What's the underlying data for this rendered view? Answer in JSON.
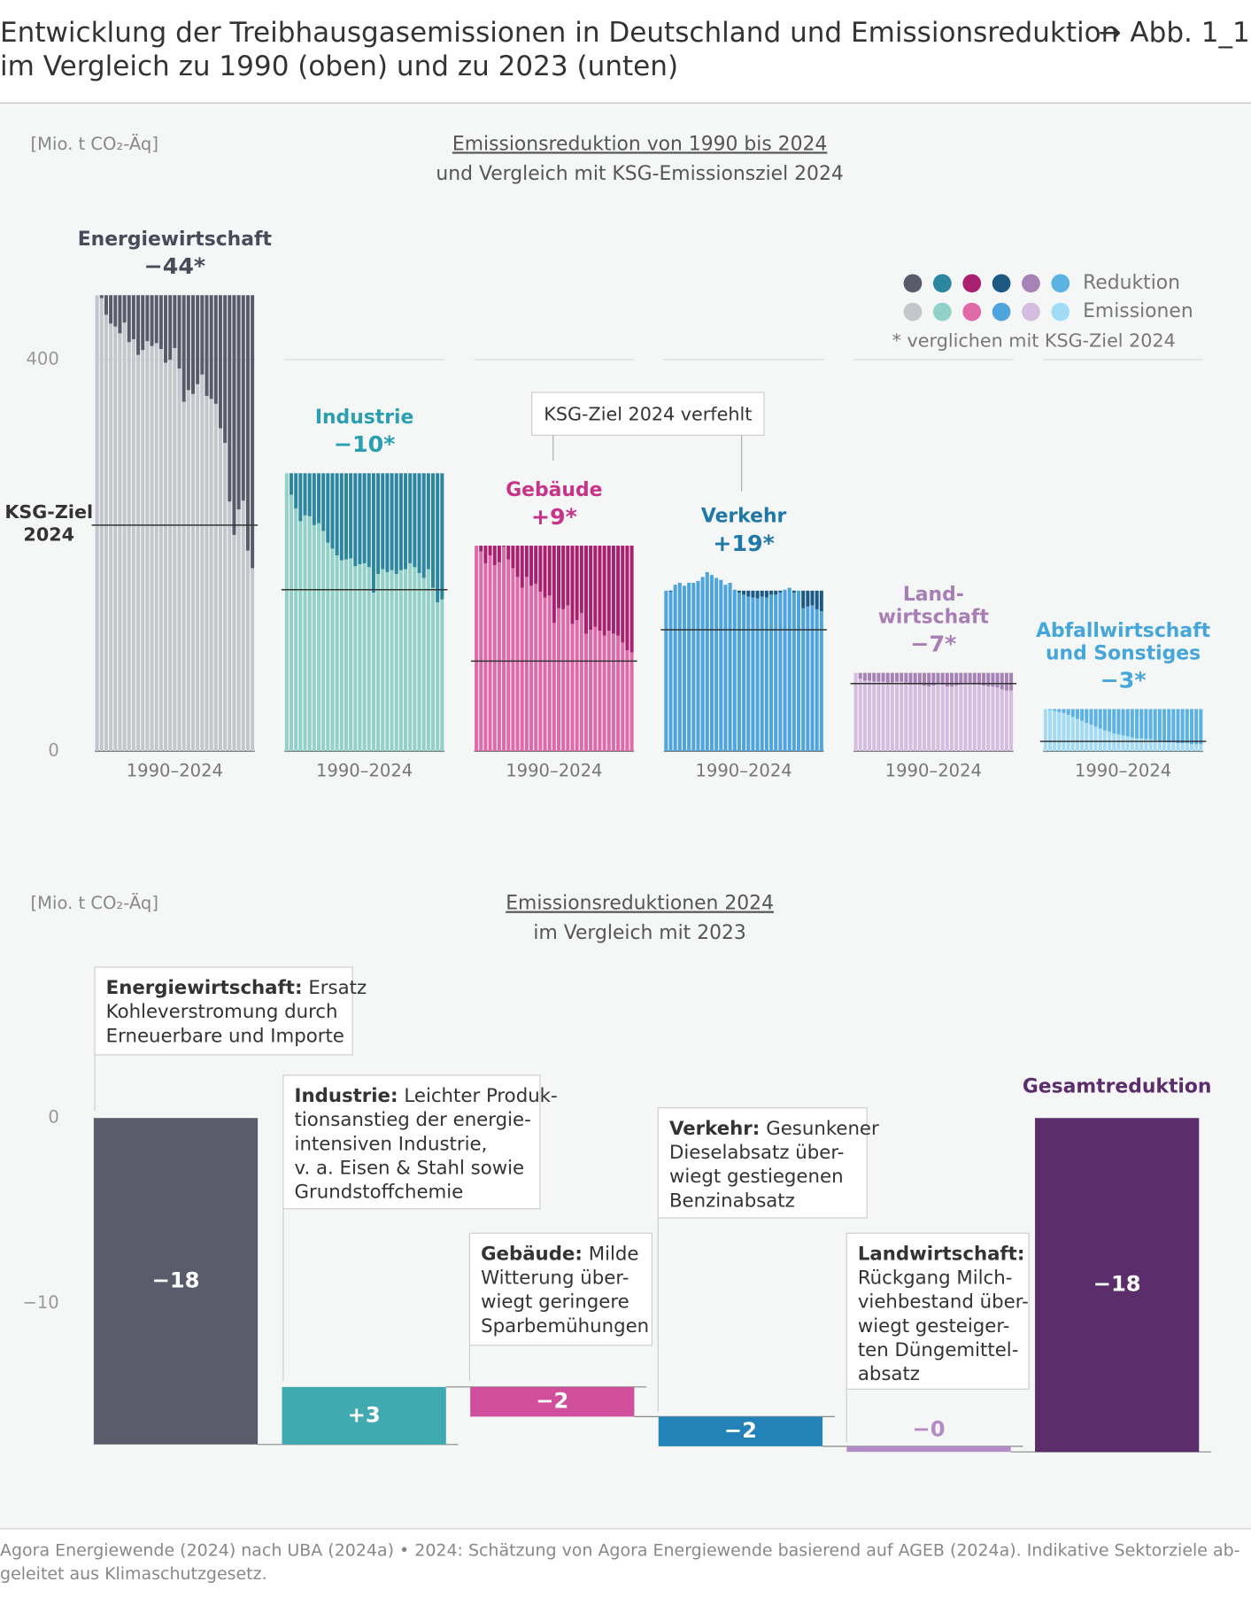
{
  "header": {
    "title_lines": [
      "Entwicklung der Treibhausgasemissionen in Deutschland und Emissionsreduktion",
      "im Vergleich zu 1990 (oben) und zu 2023 (unten)"
    ],
    "ref": "→ Abb. 1_1"
  },
  "footer": {
    "lines": [
      "Agora Energiewende (2024) nach UBA (2024a) • 2024: Schätzung von Agora Energiewende basierend auf AGEB (2024a). Indikative Sektorziele ab-",
      "geleitet aus Klimaschutzgesetz."
    ]
  },
  "chart_data": [
    {
      "type": "bar",
      "unit": "[Mio. t CO₂-Äq]",
      "title": "Emissionsreduktion von 1990 bis 2024",
      "subtitle": "und Vergleich mit KSG-Emissionsziel 2024",
      "x_label": "1990–2024",
      "ylim": [
        0,
        480
      ],
      "yticks": [
        0,
        400
      ],
      "grid": true,
      "target_label": [
        "KSG-Ziel",
        "2024"
      ],
      "callout": "KSG-Ziel 2024 verfehlt",
      "legend": {
        "labels": [
          "Reduktion",
          "Emissionen"
        ],
        "note": "* verglichen mit KSG-Ziel 2024"
      },
      "series": [
        {
          "name_lines": [
            "Energiewirtschaft"
          ],
          "label_color": "#4a4b5a",
          "color_reduction": "#595b6a",
          "color": "#c4c6cb",
          "target": 231,
          "diff_label": "−44*",
          "values": [
            466,
            463,
            446,
            437,
            434,
            427,
            438,
            418,
            421,
            405,
            410,
            419,
            414,
            417,
            411,
            397,
            400,
            412,
            391,
            357,
            369,
            365,
            375,
            385,
            363,
            360,
            355,
            330,
            315,
            255,
            221,
            247,
            256,
            205,
            187
          ]
        },
        {
          "name_lines": [
            "Industrie"
          ],
          "label_color": "#2b9fb2",
          "color_reduction": "#2a879f",
          "color": "#92d1c8",
          "target": 165,
          "diff_label": "−10*",
          "values": [
            284,
            262,
            248,
            235,
            241,
            240,
            231,
            233,
            225,
            213,
            207,
            200,
            195,
            196,
            197,
            189,
            191,
            192,
            188,
            162,
            181,
            186,
            183,
            185,
            181,
            185,
            186,
            192,
            188,
            182,
            177,
            186,
            167,
            152,
            155
          ]
        },
        {
          "name_lines": [
            "Gebäude"
          ],
          "label_color": "#c8338a",
          "color_reduction": "#a8206f",
          "color": "#e06aa9",
          "target": 92,
          "diff_label": "+9*",
          "values": [
            210,
            204,
            192,
            200,
            190,
            193,
            209,
            196,
            187,
            178,
            167,
            178,
            169,
            171,
            163,
            157,
            159,
            131,
            146,
            145,
            149,
            130,
            134,
            141,
            120,
            124,
            127,
            123,
            118,
            123,
            120,
            118,
            111,
            103,
            101
          ]
        },
        {
          "name_lines": [
            "Verkehr"
          ],
          "label_color": "#1f78a8",
          "color_reduction": "#1c5a85",
          "color": "#4ea5dd",
          "target": 124,
          "diff_label": "+19*",
          "values": [
            164,
            163,
            170,
            172,
            169,
            172,
            172,
            174,
            178,
            183,
            180,
            177,
            175,
            170,
            172,
            165,
            162,
            160,
            158,
            157,
            156,
            158,
            157,
            160,
            160,
            162,
            165,
            167,
            162,
            164,
            146,
            148,
            149,
            145,
            143
          ]
        },
        {
          "name_lines": [
            "Land-",
            "wirtschaft"
          ],
          "label_color": "#a87fb5",
          "color_reduction": "#a782b6",
          "color": "#d4bde0",
          "target": 69,
          "diff_label": "−7*",
          "values": [
            80,
            74,
            72,
            72,
            71,
            71,
            71,
            70,
            70,
            71,
            71,
            70,
            68,
            68,
            68,
            67,
            66,
            67,
            69,
            68,
            66,
            66,
            67,
            68,
            69,
            69,
            68,
            68,
            67,
            66,
            66,
            65,
            63,
            62,
            62
          ]
        },
        {
          "name_lines": [
            "Abfallwirtschaft",
            "und Sonstiges"
          ],
          "label_color": "#45a6dc",
          "color_reduction": "#5cb2e3",
          "color": "#a2dbf5",
          "target": 10,
          "diff_label": "−3*",
          "values": [
            43,
            42,
            41,
            40,
            39,
            37,
            35,
            33,
            31,
            29,
            27,
            25,
            23,
            21,
            20,
            18,
            17,
            16,
            15,
            14,
            13,
            13,
            12,
            12,
            11,
            10,
            10,
            9,
            9,
            8,
            8,
            8,
            7,
            7,
            7
          ]
        }
      ]
    },
    {
      "type": "waterfall",
      "unit": "[Mio. t CO₂-Äq]",
      "title": "Emissionsreduktionen 2024",
      "subtitle": "im Vergleich mit 2023",
      "ylim": [
        -18.5,
        5
      ],
      "yticks": [
        0,
        {
          "value": -10,
          "label": "−10"
        }
      ],
      "grid": false,
      "items": [
        {
          "head": "Energiewirtschaft:",
          "rest": "Ersatz",
          "lines": [
            "Kohleverstromung durch",
            "Erneuerbare und Importe"
          ],
          "value": -17.6,
          "value_label": "−18",
          "color": "#5a5c6b"
        },
        {
          "head": "Industrie:",
          "rest": "Leichter Produk-",
          "lines": [
            "tionsanstieg der energie-",
            "intensiven Industrie,",
            "v. a. Eisen & Stahl sowie",
            "Grundstoffchemie"
          ],
          "value": 3.1,
          "value_label": "+3",
          "color": "#41a9b0"
        },
        {
          "head": "Gebäude:",
          "rest": "Milde",
          "lines": [
            "Witterung über-",
            "wiegt geringere",
            "Sparbemühungen"
          ],
          "value": -1.6,
          "value_label": "−2",
          "color": "#d04f9c"
        },
        {
          "head": "Verkehr:",
          "rest": "Gesunkener",
          "lines": [
            "Dieselabsatz über-",
            "wiegt gestiegenen",
            "Benzinabsatz"
          ],
          "value": -1.6,
          "value_label": "−2",
          "color": "#2383b8"
        },
        {
          "head": "Landwirtschaft:",
          "lines": [
            "Rückgang Milch-",
            "viehbestand über-",
            "wiegt gesteiger-",
            "ten Düngemittel-",
            "absatz"
          ],
          "value": -0.3,
          "value_label": "−0",
          "color": "#b48cc5"
        },
        {
          "name": "Gesamtreduktion",
          "total": true,
          "value": -18.0,
          "value_label": "−18",
          "color": "#5c2d6b"
        }
      ]
    }
  ]
}
